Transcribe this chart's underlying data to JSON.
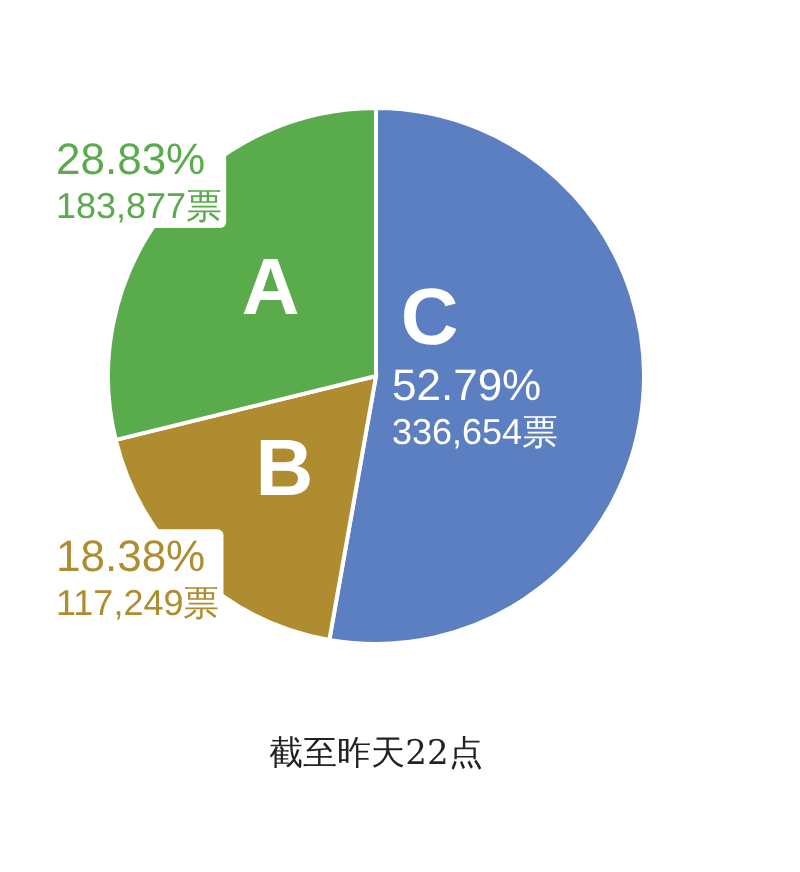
{
  "chart_data": {
    "type": "pie",
    "categories": [
      "C",
      "B",
      "A"
    ],
    "values": [
      336654,
      117249,
      183877
    ],
    "colors": [
      "#5b7fc0",
      "#b08c30",
      "#5aab4c"
    ],
    "value_labels": [
      "52.79%\n336,654票",
      "18.38%\n117,249票",
      "28.83%\n183,877票"
    ],
    "annotations": [
      "截至昨天22点"
    ]
  }
}
